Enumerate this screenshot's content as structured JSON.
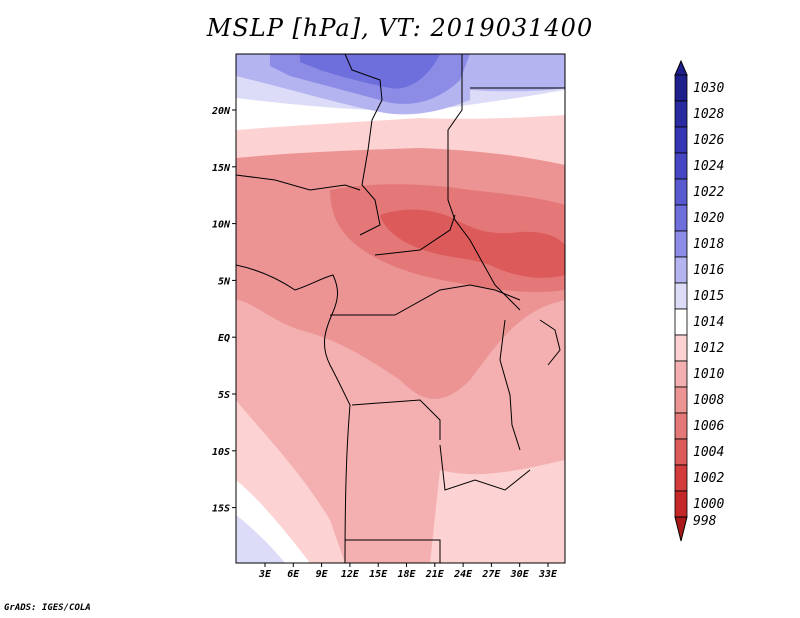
{
  "title": "MSLP [hPa], VT: 2019031400",
  "credit": "GrADS: IGES/COLA",
  "map": {
    "lon_labels": [
      "3E",
      "6E",
      "9E",
      "12E",
      "15E",
      "18E",
      "21E",
      "24E",
      "27E",
      "30E",
      "33E"
    ],
    "lat_labels": [
      "20N",
      "15N",
      "10N",
      "5N",
      "EQ",
      "5S",
      "10S",
      "15S"
    ]
  },
  "colorbar": {
    "levels": [
      "1030",
      "1028",
      "1026",
      "1024",
      "1022",
      "1020",
      "1018",
      "1016",
      "1015",
      "1014",
      "1012",
      "1010",
      "1008",
      "1006",
      "1004",
      "1002",
      "1000",
      "998"
    ],
    "colors": [
      "#1e1e8c",
      "#2a2aa0",
      "#3636b4",
      "#4646c4",
      "#5a5ad0",
      "#6e6edc",
      "#8c8ce6",
      "#b4b4f0",
      "#dcdcf8",
      "#ffffff",
      "#fcd2d2",
      "#f4b0b0",
      "#ec9494",
      "#e47878",
      "#dc5a5a",
      "#d23c3c",
      "#c42828",
      "#a81a1a"
    ]
  }
}
